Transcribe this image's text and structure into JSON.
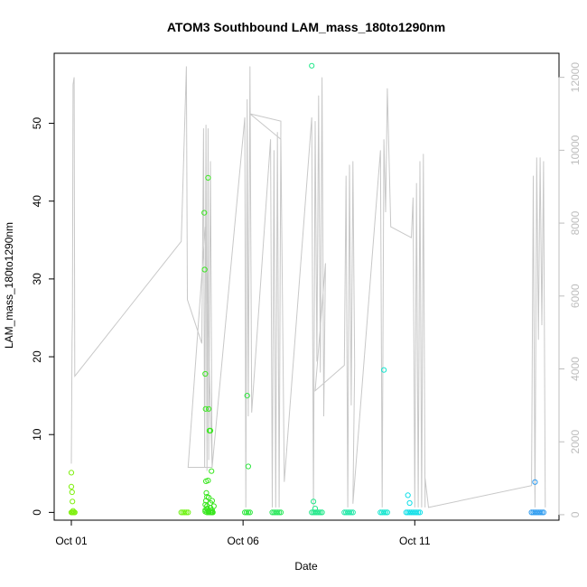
{
  "chart_data": {
    "type": "scatter",
    "title": "ATOM3 Southbound LAM_mass_180to1290nm",
    "xlabel": "Date",
    "ylabel": "LAM_mass_180to1290nm",
    "x_ticks": [
      {
        "day": 1,
        "label": "Oct 01"
      },
      {
        "day": 6,
        "label": "Oct 06"
      },
      {
        "day": 11,
        "label": "Oct 11"
      }
    ],
    "xlim": [
      0.5,
      15.2
    ],
    "y_left": {
      "ticks": [
        0,
        10,
        20,
        30,
        40,
        50
      ],
      "lim": [
        -1,
        59
      ]
    },
    "y_right": {
      "ticks": [
        0,
        2000,
        4000,
        6000,
        8000,
        10000,
        12000
      ],
      "lim": [
        -150,
        12660
      ],
      "color": "#bdbdbd"
    },
    "line_color": "#c8c8c8",
    "altitude_path": [
      [
        1.0,
        1400
      ],
      [
        1.02,
        4800
      ],
      [
        1.03,
        5400
      ],
      [
        1.05,
        11800
      ],
      [
        1.08,
        12000
      ],
      [
        1.1,
        3800
      ],
      [
        4.2,
        7500
      ],
      [
        4.35,
        12300
      ],
      [
        4.38,
        5900
      ],
      [
        4.8,
        4700
      ],
      [
        4.85,
        10600
      ],
      [
        4.88,
        1300
      ],
      [
        4.92,
        10700
      ],
      [
        4.95,
        1200
      ],
      [
        4.98,
        10600
      ],
      [
        5.0,
        1500
      ],
      [
        5.05,
        9700
      ],
      [
        5.1,
        1300
      ],
      [
        4.4,
        1300
      ],
      [
        4.9,
        7900
      ],
      [
        5.1,
        1300
      ],
      [
        6.05,
        10900
      ],
      [
        6.08,
        200
      ],
      [
        6.12,
        11400
      ],
      [
        6.15,
        2700
      ],
      [
        6.2,
        12300
      ],
      [
        6.25,
        2800
      ],
      [
        6.8,
        10300
      ],
      [
        6.85,
        200
      ],
      [
        6.9,
        10000
      ],
      [
        6.95,
        200
      ],
      [
        7.0,
        10500
      ],
      [
        7.05,
        200
      ],
      [
        7.1,
        10800
      ],
      [
        6.2,
        11000
      ],
      [
        7.1,
        10300
      ],
      [
        7.2,
        900
      ],
      [
        8.0,
        10900
      ],
      [
        8.05,
        200
      ],
      [
        8.1,
        10800
      ],
      [
        8.15,
        4200
      ],
      [
        8.2,
        11500
      ],
      [
        8.25,
        3900
      ],
      [
        8.3,
        12000
      ],
      [
        8.35,
        2700
      ],
      [
        8.4,
        6900
      ],
      [
        8.1,
        3400
      ],
      [
        8.95,
        4100
      ],
      [
        9.0,
        9300
      ],
      [
        9.05,
        200
      ],
      [
        9.1,
        9600
      ],
      [
        9.15,
        3000
      ],
      [
        9.2,
        9700
      ],
      [
        9.25,
        4100
      ],
      [
        9.2,
        300
      ],
      [
        10.0,
        10000
      ],
      [
        10.05,
        200
      ],
      [
        10.1,
        10300
      ],
      [
        10.15,
        8300
      ],
      [
        10.2,
        11700
      ],
      [
        10.3,
        7900
      ],
      [
        10.9,
        7600
      ],
      [
        10.95,
        8700
      ],
      [
        11.0,
        200
      ],
      [
        11.05,
        9100
      ],
      [
        11.1,
        200
      ],
      [
        11.15,
        9700
      ],
      [
        11.2,
        200
      ],
      [
        11.25,
        9900
      ],
      [
        11.3,
        200
      ],
      [
        11.3,
        1000
      ],
      [
        11.4,
        200
      ],
      [
        14.4,
        800
      ],
      [
        14.45,
        9300
      ],
      [
        14.5,
        200
      ],
      [
        14.55,
        9800
      ],
      [
        14.6,
        4800
      ],
      [
        14.65,
        9800
      ],
      [
        14.7,
        5200
      ],
      [
        14.75,
        9700
      ],
      [
        14.8,
        200
      ]
    ],
    "series": [
      {
        "x": [
          1.0,
          1.0,
          1.02,
          1.03,
          1.05,
          1.0,
          1.02,
          1.05,
          1.08,
          1.1
        ],
        "y": [
          5.1,
          3.3,
          2.6,
          1.4,
          0.2,
          0.0,
          0.0,
          0.0,
          0.0,
          0.0
        ],
        "color": "#7ff00e"
      },
      {
        "x": [
          4.2,
          4.25,
          4.3,
          4.35,
          4.4
        ],
        "y": [
          0.0,
          0.0,
          0.0,
          0.0,
          0.0
        ],
        "color": "#70f214"
      },
      {
        "x": [
          4.87,
          4.88,
          4.9,
          4.91,
          4.92,
          4.93,
          4.95,
          4.96,
          4.98,
          5.0,
          5.02,
          5.05,
          5.08,
          4.9,
          4.92,
          4.95,
          4.98,
          5.0,
          5.05,
          5.1,
          5.15,
          4.9,
          4.95,
          5.0,
          5.05,
          5.1,
          4.9,
          5.0,
          5.05,
          5.1,
          5.12,
          4.95,
          5.0,
          5.05,
          5.08,
          5.1
        ],
        "y": [
          38.5,
          31.2,
          17.8,
          13.3,
          4.0,
          2.5,
          0.8,
          0.5,
          43.0,
          13.3,
          10.5,
          10.5,
          5.3,
          1.0,
          1.5,
          2.0,
          4.1,
          1.9,
          1.2,
          1.5,
          0.8,
          0.3,
          0.4,
          0.2,
          0.6,
          0.3,
          0.1,
          0.1,
          0.05,
          0.1,
          0.0,
          0.0,
          0.0,
          0.0,
          0.0,
          0.0
        ],
        "color": "#39e61f"
      },
      {
        "x": [
          6.05,
          6.1,
          6.15,
          6.2,
          6.12,
          6.15
        ],
        "y": [
          0.0,
          0.0,
          0.0,
          0.0,
          15.0,
          5.9
        ],
        "color": "#2ee63e"
      },
      {
        "x": [
          6.85,
          6.9,
          6.95,
          7.0,
          7.05,
          7.1
        ],
        "y": [
          0.0,
          0.0,
          0.0,
          0.0,
          0.0,
          0.0
        ],
        "color": "#28e85a"
      },
      {
        "x": [
          8.0,
          8.05,
          8.1,
          8.15,
          8.2,
          8.25,
          8.3,
          8.0,
          8.05,
          8.1
        ],
        "y": [
          0.0,
          0.0,
          0.0,
          0.0,
          0.0,
          0.0,
          0.0,
          57.4,
          1.4,
          0.5
        ],
        "color": "#22e88a"
      },
      {
        "x": [
          8.95,
          9.0,
          9.05,
          9.1,
          9.15,
          9.2
        ],
        "y": [
          0.0,
          0.0,
          0.0,
          0.0,
          0.0,
          0.0
        ],
        "color": "#22e8a8"
      },
      {
        "x": [
          10.0,
          10.05,
          10.1,
          10.15,
          10.2,
          10.1
        ],
        "y": [
          0.0,
          0.0,
          0.0,
          0.0,
          0.0,
          18.3
        ],
        "color": "#14e6cf"
      },
      {
        "x": [
          10.75,
          10.8,
          10.85,
          10.9,
          10.95,
          11.0,
          11.05,
          11.1,
          11.15,
          10.8,
          10.85
        ],
        "y": [
          0.0,
          0.0,
          0.0,
          0.0,
          0.0,
          0.0,
          0.0,
          0.0,
          0.0,
          2.2,
          1.2
        ],
        "color": "#0fdfe8"
      },
      {
        "x": [
          14.4,
          14.45,
          14.5,
          14.55,
          14.6,
          14.65,
          14.7,
          14.75,
          14.5
        ],
        "y": [
          0.0,
          0.0,
          0.0,
          0.0,
          0.0,
          0.0,
          0.0,
          0.0,
          3.9
        ],
        "color": "#2c9bf0"
      }
    ]
  }
}
